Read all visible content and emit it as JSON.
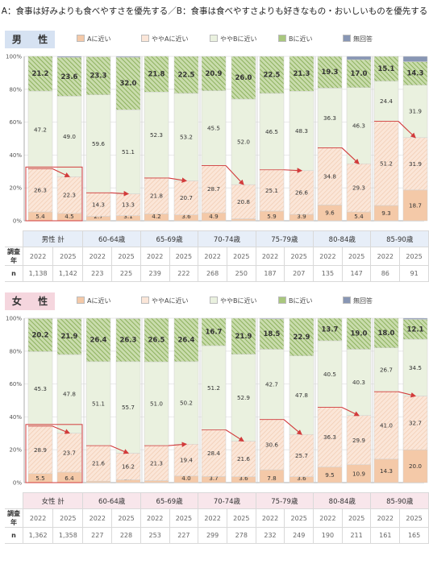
{
  "title": "A：食事は好みよりも食べやすさを優先する／B：食事は食べやすさよりも好きなもの・おいしいものを優先する",
  "legend": [
    {
      "label": "Aに近い",
      "color": "#f4c9a8"
    },
    {
      "label": "ややAに近い",
      "color": "#fbe6d8"
    },
    {
      "label": "ややBに近い",
      "color": "#eaf1df"
    },
    {
      "label": "Bに近い",
      "color": "#a9c77e"
    },
    {
      "label": "無回答",
      "color": "#8896b4"
    }
  ],
  "axis_ticks": [
    "0%",
    "20%",
    "40%",
    "60%",
    "80%",
    "100%"
  ],
  "row_headers": {
    "year": "調査年",
    "n": "n"
  },
  "chart_data": [
    {
      "type": "bar",
      "sex_label": "男 性",
      "stacked": true,
      "ylim": [
        0,
        100
      ],
      "series_names": [
        "Aに近い",
        "ややAに近い",
        "ややBに近い",
        "Bに近い",
        "無回答"
      ],
      "groups": [
        {
          "label": "男性 計",
          "bars": [
            {
              "year": "2022",
              "n": "1,138",
              "values": [
                5.4,
                26.3,
                47.2,
                21.2,
                0.0
              ]
            },
            {
              "year": "2025",
              "n": "1,142",
              "values": [
                4.5,
                22.3,
                49.0,
                23.6,
                0.6
              ]
            }
          ]
        },
        {
          "label": "60-64歳",
          "bars": [
            {
              "year": "2022",
              "n": "223",
              "values": [
                2.7,
                14.3,
                59.6,
                23.3,
                0.1
              ]
            },
            {
              "year": "2025",
              "n": "225",
              "values": [
                3.1,
                13.3,
                51.1,
                32.0,
                0.5
              ]
            }
          ]
        },
        {
          "label": "65-69歳",
          "bars": [
            {
              "year": "2022",
              "n": "239",
              "values": [
                4.2,
                21.8,
                52.3,
                21.8,
                0.0
              ]
            },
            {
              "year": "2025",
              "n": "222",
              "values": [
                3.6,
                20.7,
                53.2,
                22.5,
                0.0
              ]
            }
          ]
        },
        {
          "label": "70-74歳",
          "bars": [
            {
              "year": "2022",
              "n": "268",
              "values": [
                4.9,
                28.7,
                45.5,
                20.9,
                0.0
              ]
            },
            {
              "year": "2025",
              "n": "250",
              "values": [
                1.2,
                20.8,
                52.0,
                26.0,
                0.0
              ]
            }
          ]
        },
        {
          "label": "75-79歳",
          "bars": [
            {
              "year": "2022",
              "n": "187",
              "values": [
                5.9,
                25.1,
                46.5,
                22.5,
                0.0
              ]
            },
            {
              "year": "2025",
              "n": "207",
              "values": [
                3.9,
                26.6,
                48.3,
                21.3,
                0.0
              ]
            }
          ]
        },
        {
          "label": "80-84歳",
          "bars": [
            {
              "year": "2022",
              "n": "135",
              "values": [
                9.6,
                34.8,
                36.3,
                19.3,
                0.0
              ]
            },
            {
              "year": "2025",
              "n": "147",
              "values": [
                5.4,
                29.3,
                46.3,
                17.0,
                2.0
              ]
            }
          ]
        },
        {
          "label": "85-90歳",
          "bars": [
            {
              "year": "2022",
              "n": "86",
              "values": [
                9.3,
                51.2,
                24.4,
                15.1,
                0.0
              ]
            },
            {
              "year": "2025",
              "n": "91",
              "values": [
                18.7,
                31.9,
                31.9,
                14.3,
                3.2
              ]
            }
          ]
        }
      ]
    },
    {
      "type": "bar",
      "sex_label": "女 性",
      "stacked": true,
      "ylim": [
        0,
        100
      ],
      "series_names": [
        "Aに近い",
        "ややAに近い",
        "ややBに近い",
        "Bに近い",
        "無回答"
      ],
      "groups": [
        {
          "label": "女性 計",
          "bars": [
            {
              "year": "2022",
              "n": "1,362",
              "values": [
                5.5,
                28.9,
                45.3,
                20.2,
                0.1
              ]
            },
            {
              "year": "2025",
              "n": "1,358",
              "values": [
                6.4,
                23.7,
                47.8,
                21.9,
                0.2
              ]
            }
          ]
        },
        {
          "label": "60-64歳",
          "bars": [
            {
              "year": "2022",
              "n": "227",
              "values": [
                0.9,
                21.6,
                51.1,
                26.4,
                0.0
              ]
            },
            {
              "year": "2025",
              "n": "228",
              "values": [
                1.7,
                16.2,
                55.7,
                26.3,
                0.1
              ]
            }
          ]
        },
        {
          "label": "65-69歳",
          "bars": [
            {
              "year": "2022",
              "n": "253",
              "values": [
                1.2,
                21.3,
                51.0,
                26.5,
                0.0
              ]
            },
            {
              "year": "2025",
              "n": "227",
              "values": [
                4.0,
                19.4,
                50.2,
                26.4,
                0.0
              ]
            }
          ]
        },
        {
          "label": "70-74歳",
          "bars": [
            {
              "year": "2022",
              "n": "299",
              "values": [
                3.7,
                28.4,
                51.2,
                16.7,
                0.0
              ]
            },
            {
              "year": "2025",
              "n": "278",
              "values": [
                3.6,
                21.6,
                52.9,
                21.9,
                0.0
              ]
            }
          ]
        },
        {
          "label": "75-79歳",
          "bars": [
            {
              "year": "2022",
              "n": "232",
              "values": [
                7.8,
                30.6,
                42.7,
                18.5,
                0.4
              ]
            },
            {
              "year": "2025",
              "n": "249",
              "values": [
                3.6,
                25.7,
                47.8,
                22.9,
                0.0
              ]
            }
          ]
        },
        {
          "label": "80-84歳",
          "bars": [
            {
              "year": "2022",
              "n": "190",
              "values": [
                9.5,
                36.3,
                40.5,
                13.7,
                0.0
              ]
            },
            {
              "year": "2025",
              "n": "211",
              "values": [
                10.9,
                29.9,
                40.3,
                19.0,
                0.0
              ]
            }
          ]
        },
        {
          "label": "85-90歳",
          "bars": [
            {
              "year": "2022",
              "n": "161",
              "values": [
                14.3,
                41.0,
                26.7,
                18.0,
                0.0
              ]
            },
            {
              "year": "2025",
              "n": "165",
              "values": [
                20.0,
                32.7,
                34.5,
                12.1,
                0.7
              ]
            }
          ]
        }
      ]
    }
  ]
}
